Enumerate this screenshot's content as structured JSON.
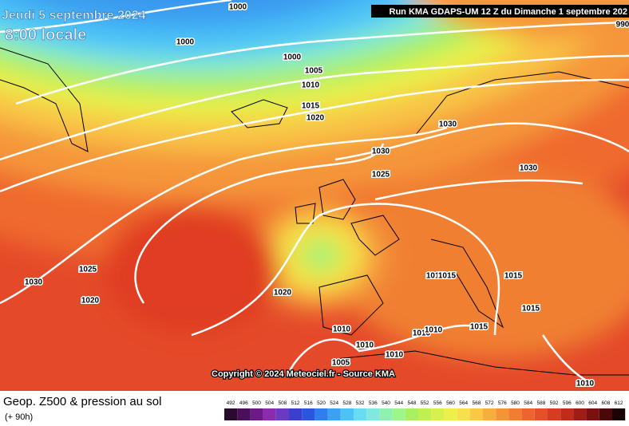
{
  "header": {
    "date": "Jeudi 5 septembre 2024",
    "time": "8:00 locale",
    "run": "Run KMA GDAPS-UM 12 Z du Dimanche 1 septembre 202"
  },
  "isobar_labels": [
    "1000",
    "1000",
    "1000",
    "1005",
    "1010",
    "1015",
    "1020",
    "1030",
    "1030",
    "1030",
    "1025",
    "1030",
    "1025",
    "1020",
    "1020",
    "1015",
    "1015",
    "1015",
    "1015",
    "1015",
    "1010",
    "1010",
    "1010",
    "1010",
    "1010",
    "1005",
    "1010",
    "990"
  ],
  "copyright": "Copyright © 2024 Meteociel.fr - Source KMA",
  "footer": {
    "title": "Geop. Z500 & pression au sol",
    "lead": "(+ 90h)"
  },
  "scale": {
    "values": [
      492,
      496,
      500,
      504,
      508,
      512,
      516,
      520,
      524,
      528,
      532,
      536,
      540,
      544,
      548,
      552,
      556,
      560,
      564,
      568,
      572,
      576,
      580,
      584,
      588,
      592,
      596,
      600,
      604,
      608,
      612
    ],
    "colors": [
      "#2b0a30",
      "#4a0f58",
      "#6d1a86",
      "#8c2bb0",
      "#6a3ac4",
      "#3b3fd0",
      "#2a55e0",
      "#2f7ef0",
      "#3aa2f5",
      "#4cc3f7",
      "#66dcf5",
      "#7fe8e0",
      "#8ff0b0",
      "#9ef58a",
      "#a8f060",
      "#c0f050",
      "#d8f04a",
      "#eef04a",
      "#f8e04a",
      "#fac842",
      "#f8ae3a",
      "#f59434",
      "#f27c30",
      "#ef642c",
      "#e84e28",
      "#d83a22",
      "#c22a1c",
      "#a01c16",
      "#7c1010",
      "#4a0808",
      "#1a0404"
    ]
  }
}
